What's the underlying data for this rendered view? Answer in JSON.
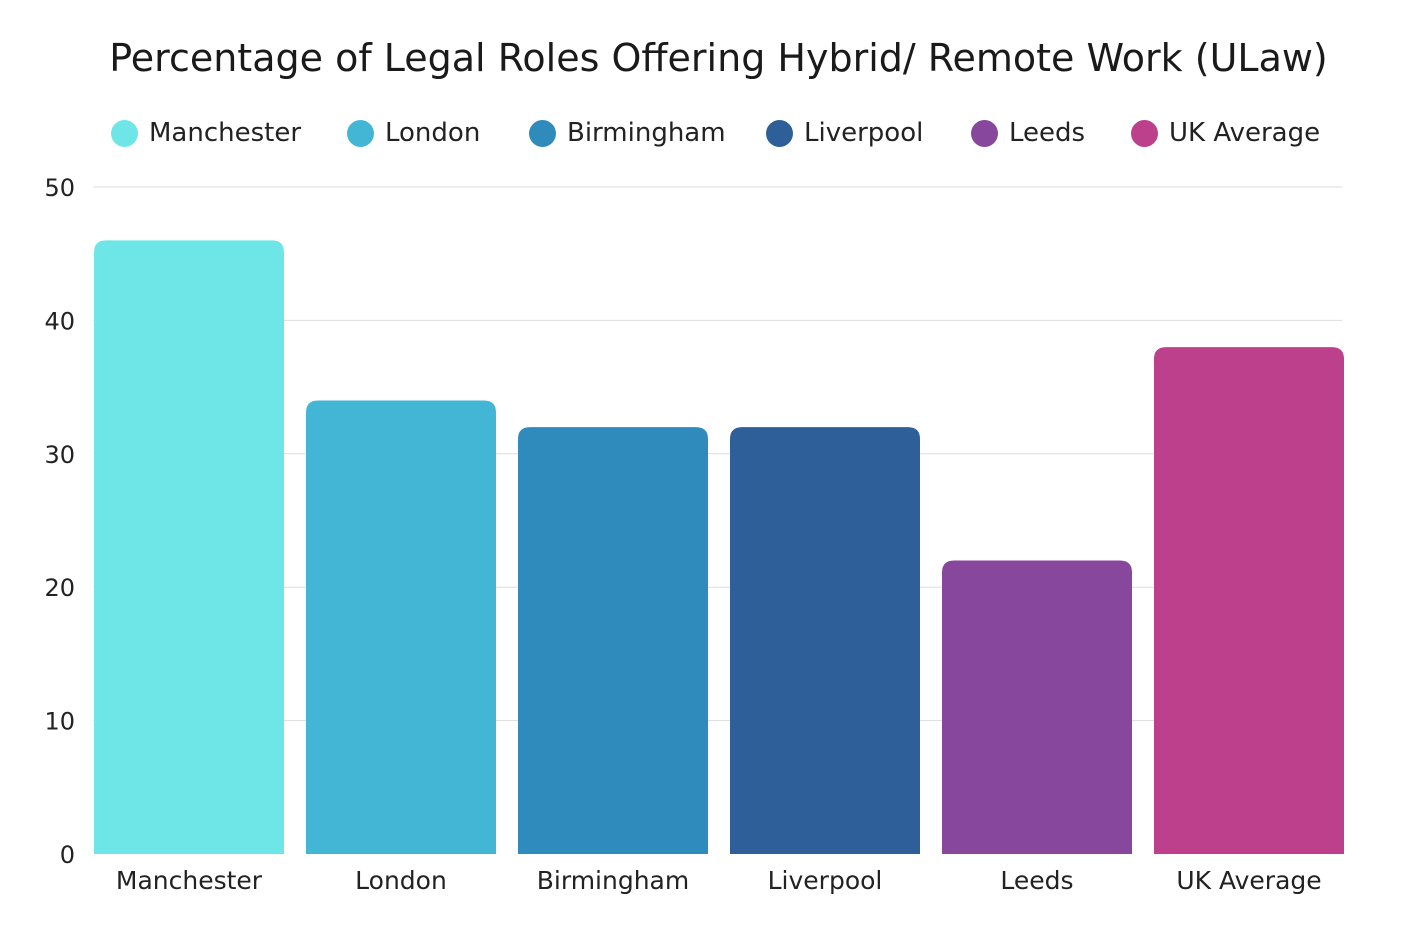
{
  "chart_data": {
    "type": "bar",
    "title": "Percentage of Legal Roles Offering Hybrid/ Remote Work (ULaw)",
    "xlabel": "",
    "ylabel": "",
    "ylim": [
      0,
      50
    ],
    "yticks": [
      0,
      10,
      20,
      30,
      40,
      50
    ],
    "grid": true,
    "legend_position": "top",
    "categories": [
      "Manchester",
      "London",
      "Birmingham",
      "Liverpool",
      "Leeds",
      "UK Average"
    ],
    "values": [
      46,
      34,
      32,
      32,
      22,
      38
    ],
    "colors": [
      "#6ee6e8",
      "#43b6d6",
      "#2e8bbb",
      "#2e5f98",
      "#87479c",
      "#bc408c"
    ]
  }
}
